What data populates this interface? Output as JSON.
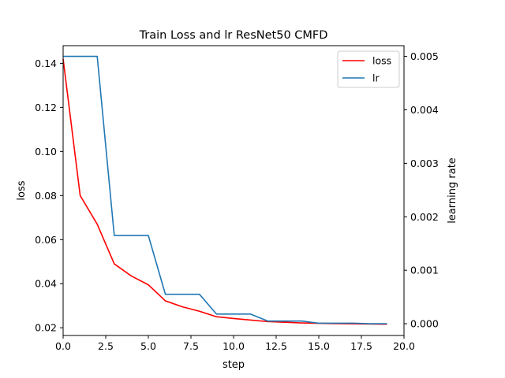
{
  "chart_data": {
    "type": "line",
    "title": "Train Loss and lr ResNet50 CMFD",
    "xlabel": "step",
    "ylabel": "loss",
    "y2label": "learning rate",
    "xlim": [
      0,
      20
    ],
    "ylim": [
      0.0165,
      0.148
    ],
    "y2lim": [
      -0.00022,
      0.0052
    ],
    "xticks": [
      0.0,
      2.5,
      5.0,
      7.5,
      10.0,
      12.5,
      15.0,
      17.5,
      20.0
    ],
    "xtick_labels": [
      "0.0",
      "2.5",
      "5.0",
      "7.5",
      "10.0",
      "12.5",
      "15.0",
      "17.5",
      "20.0"
    ],
    "yticks": [
      0.02,
      0.04,
      0.06,
      0.08,
      0.1,
      0.12,
      0.14
    ],
    "ytick_labels": [
      "0.02",
      "0.04",
      "0.06",
      "0.08",
      "0.10",
      "0.12",
      "0.14"
    ],
    "y2ticks": [
      0.0,
      0.001,
      0.002,
      0.003,
      0.004,
      0.005
    ],
    "y2tick_labels": [
      "0.000",
      "0.001",
      "0.002",
      "0.003",
      "0.004",
      "0.005"
    ],
    "grid": false,
    "legend_position": "top-right",
    "x": [
      0,
      1,
      2,
      3,
      4,
      5,
      6,
      7,
      8,
      9,
      10,
      11,
      12,
      13,
      14,
      15,
      16,
      17,
      18,
      19
    ],
    "series": [
      {
        "name": "loss",
        "axis": "left",
        "color": "#ff0000",
        "values": [
          0.142,
          0.08,
          0.067,
          0.049,
          0.0435,
          0.0395,
          0.0322,
          0.0295,
          0.0275,
          0.025,
          0.0242,
          0.0235,
          0.0228,
          0.0225,
          0.0222,
          0.022,
          0.0219,
          0.0218,
          0.0217,
          0.0216
        ]
      },
      {
        "name": "lr",
        "axis": "right",
        "color": "#1f77b4",
        "values": [
          0.005,
          0.005,
          0.005,
          0.00165,
          0.00165,
          0.00165,
          0.00055,
          0.00055,
          0.00055,
          0.00018,
          0.00018,
          0.00018,
          5e-05,
          5e-05,
          5e-05,
          1e-05,
          1e-05,
          1e-05,
          0.0,
          0.0
        ]
      }
    ]
  }
}
